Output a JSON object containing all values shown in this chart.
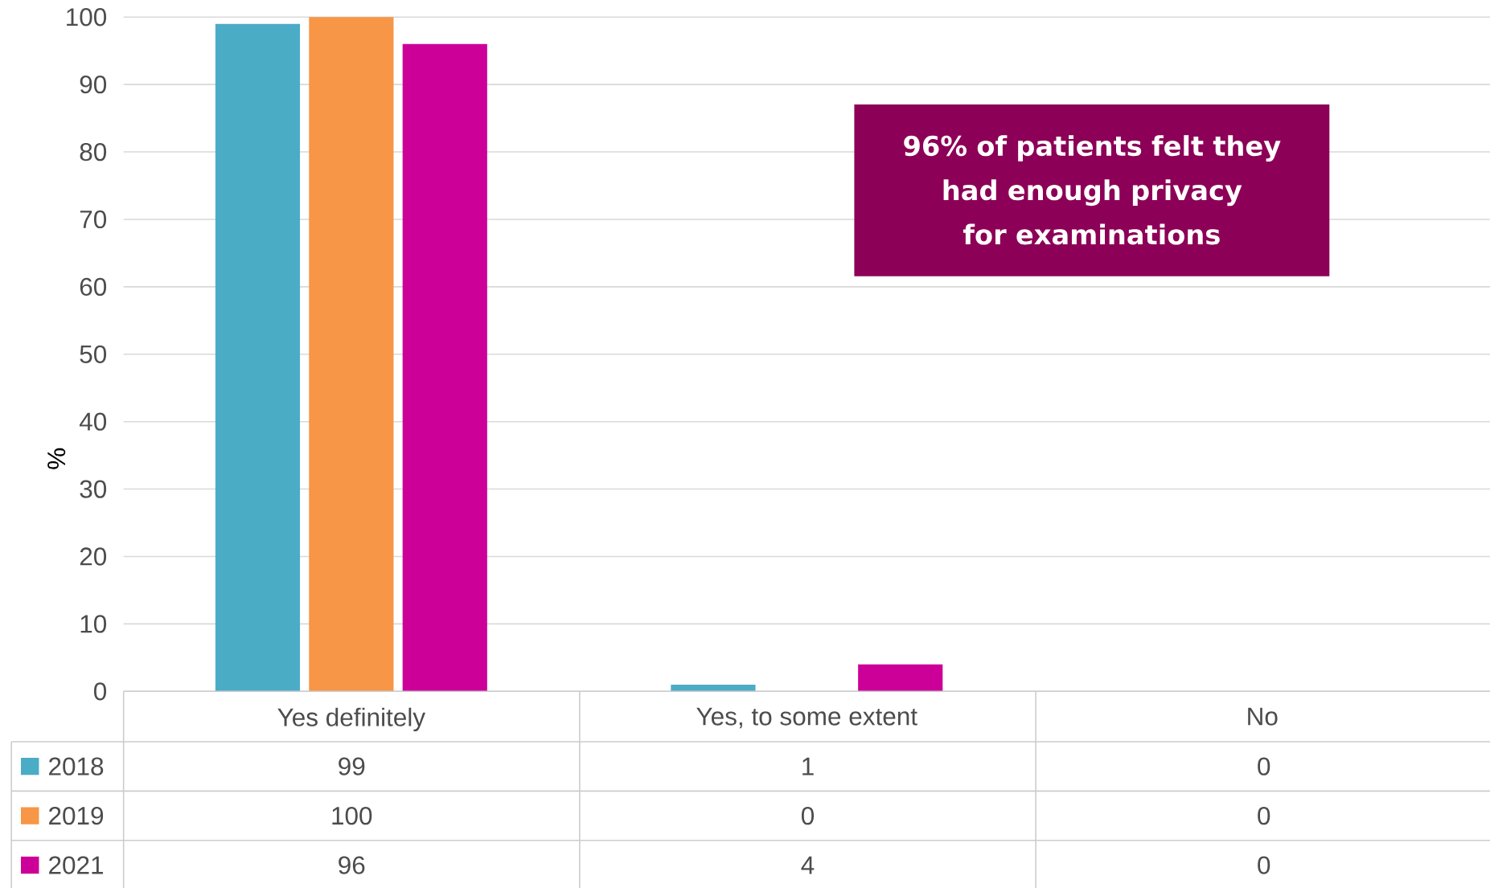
{
  "chart_data": {
    "type": "bar",
    "ylabel": "%",
    "categories": [
      "Yes definitely",
      "Yes, to some extent",
      "No"
    ],
    "series": [
      {
        "name": "2018",
        "color": "#4bacc6",
        "values": [
          99,
          1,
          0
        ]
      },
      {
        "name": "2019",
        "color": "#f79646",
        "values": [
          100,
          0,
          0
        ]
      },
      {
        "name": "2021",
        "color": "#cc0099",
        "values": [
          96,
          4,
          0
        ]
      }
    ],
    "ylim": [
      0,
      100
    ],
    "yticks": [
      0,
      10,
      20,
      30,
      40,
      50,
      60,
      70,
      80,
      90,
      100
    ],
    "grid": "y",
    "legend": "bottom",
    "data_labels": true,
    "annotations": [
      "96% of patients felt they had enough privacy for examinations"
    ]
  }
}
